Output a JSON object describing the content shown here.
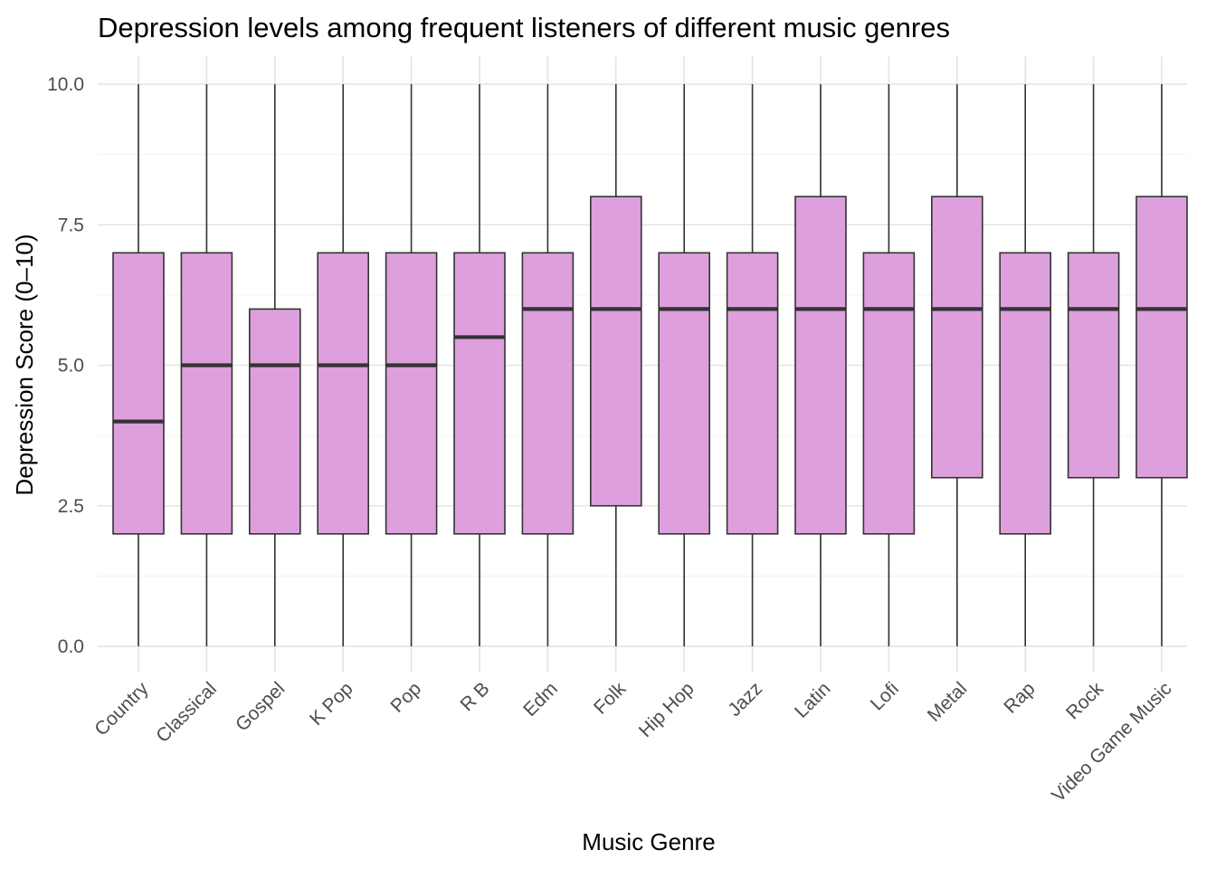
{
  "chart_data": {
    "type": "boxplot",
    "title": "Depression levels among frequent listeners of different music genres",
    "xlabel": "Music Genre",
    "ylabel": "Depression Score (0–10)",
    "ylim": [
      -0.55,
      10.5
    ],
    "yticks": [
      0,
      2.5,
      5,
      7.5,
      10
    ],
    "ytick_labels": [
      "0.0",
      "2.5",
      "5.0",
      "7.5",
      "10.0"
    ],
    "grid": true,
    "fill_color": "#DDA0DD",
    "line_color": "#333333",
    "categories": [
      "Country",
      "Classical",
      "Gospel",
      "K Pop",
      "Pop",
      "R B",
      "Edm",
      "Folk",
      "Hip Hop",
      "Jazz",
      "Latin",
      "Lofi",
      "Metal",
      "Rap",
      "Rock",
      "Video Game Music"
    ],
    "boxes": [
      {
        "min": 0,
        "q1": 2,
        "median": 4,
        "q3": 7,
        "max": 10
      },
      {
        "min": 0,
        "q1": 2,
        "median": 5,
        "q3": 7,
        "max": 10
      },
      {
        "min": 0,
        "q1": 2,
        "median": 5,
        "q3": 6,
        "max": 10
      },
      {
        "min": 0,
        "q1": 2,
        "median": 5,
        "q3": 7,
        "max": 10
      },
      {
        "min": 0,
        "q1": 2,
        "median": 5,
        "q3": 7,
        "max": 10
      },
      {
        "min": 0,
        "q1": 2,
        "median": 5.5,
        "q3": 7,
        "max": 10
      },
      {
        "min": 0,
        "q1": 2,
        "median": 6,
        "q3": 7,
        "max": 10
      },
      {
        "min": 0,
        "q1": 2.5,
        "median": 6,
        "q3": 8,
        "max": 10
      },
      {
        "min": 0,
        "q1": 2,
        "median": 6,
        "q3": 7,
        "max": 10
      },
      {
        "min": 0,
        "q1": 2,
        "median": 6,
        "q3": 7,
        "max": 10
      },
      {
        "min": 0,
        "q1": 2,
        "median": 6,
        "q3": 8,
        "max": 10
      },
      {
        "min": 0,
        "q1": 2,
        "median": 6,
        "q3": 7,
        "max": 10
      },
      {
        "min": 0,
        "q1": 3,
        "median": 6,
        "q3": 8,
        "max": 10
      },
      {
        "min": 0,
        "q1": 2,
        "median": 6,
        "q3": 7,
        "max": 10
      },
      {
        "min": 0,
        "q1": 3,
        "median": 6,
        "q3": 7,
        "max": 10
      },
      {
        "min": 0,
        "q1": 3,
        "median": 6,
        "q3": 8,
        "max": 10
      }
    ]
  }
}
